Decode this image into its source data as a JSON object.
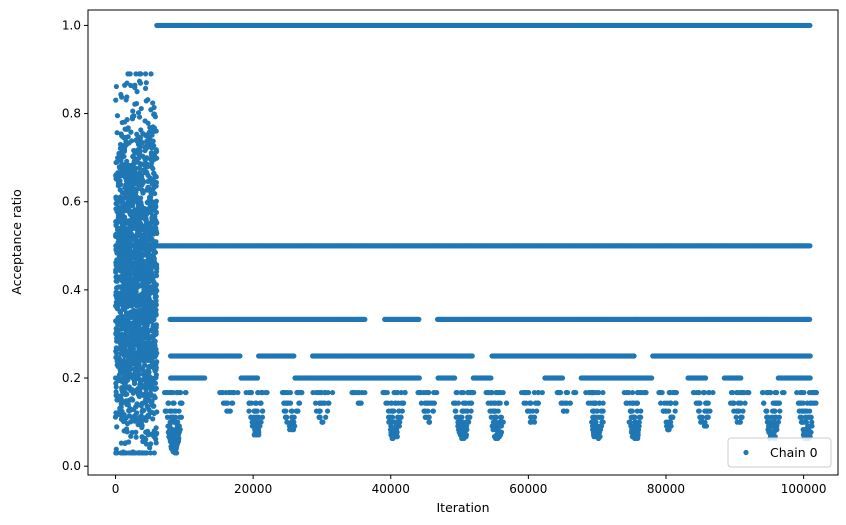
{
  "chart_data": {
    "type": "scatter",
    "xlabel": "Iteration",
    "ylabel": "Acceptance ratio",
    "xlim": [
      -4000,
      105000
    ],
    "ylim": [
      -0.02,
      1.035
    ],
    "xticks": [
      0,
      20000,
      40000,
      60000,
      80000,
      100000
    ],
    "yticks": [
      0.0,
      0.2,
      0.4,
      0.6,
      0.8,
      1.0
    ],
    "xtick_labels": [
      "0",
      "20000",
      "40000",
      "60000",
      "80000",
      "100000"
    ],
    "ytick_labels": [
      "0.0",
      "0.2",
      "0.4",
      "0.6",
      "0.8",
      "1.0"
    ],
    "grid": false,
    "legend": {
      "position": "lower-right",
      "entries": [
        "Chain 0"
      ]
    },
    "series": [
      {
        "name": "Chain 0",
        "color": "#1f77b4",
        "marker": "circle",
        "warmup_cloud": {
          "x_range": [
            0,
            6000
          ],
          "y_range": [
            0.03,
            0.89
          ]
        },
        "bands": [
          {
            "y": 1.0,
            "x_range": [
              6000,
              101000
            ],
            "coverage": "continuous"
          },
          {
            "y": 0.5,
            "x_range": [
              6000,
              101000
            ],
            "coverage": "continuous"
          },
          {
            "y": 0.333,
            "x_range": [
              6000,
              101000
            ],
            "coverage": "segments"
          },
          {
            "y": 0.25,
            "x_range": [
              8000,
              101000
            ],
            "coverage": "segments"
          },
          {
            "y": 0.2,
            "x_range": [
              8000,
              101000
            ],
            "coverage": "segments"
          }
        ],
        "dips": [
          {
            "x_center": 8500,
            "min_y": 0.03
          },
          {
            "x_center": 16500,
            "min_y": 0.12
          },
          {
            "x_center": 20500,
            "min_y": 0.07
          },
          {
            "x_center": 25500,
            "min_y": 0.08
          },
          {
            "x_center": 30000,
            "min_y": 0.1
          },
          {
            "x_center": 35500,
            "min_y": 0.14
          },
          {
            "x_center": 40500,
            "min_y": 0.06
          },
          {
            "x_center": 45500,
            "min_y": 0.1
          },
          {
            "x_center": 50500,
            "min_y": 0.06
          },
          {
            "x_center": 55500,
            "min_y": 0.06
          },
          {
            "x_center": 60500,
            "min_y": 0.1
          },
          {
            "x_center": 65500,
            "min_y": 0.12
          },
          {
            "x_center": 70000,
            "min_y": 0.06
          },
          {
            "x_center": 75500,
            "min_y": 0.06
          },
          {
            "x_center": 80500,
            "min_y": 0.08
          },
          {
            "x_center": 85500,
            "min_y": 0.09
          },
          {
            "x_center": 90500,
            "min_y": 0.1
          },
          {
            "x_center": 95500,
            "min_y": 0.06
          },
          {
            "x_center": 100500,
            "min_y": 0.06
          }
        ]
      }
    ]
  }
}
